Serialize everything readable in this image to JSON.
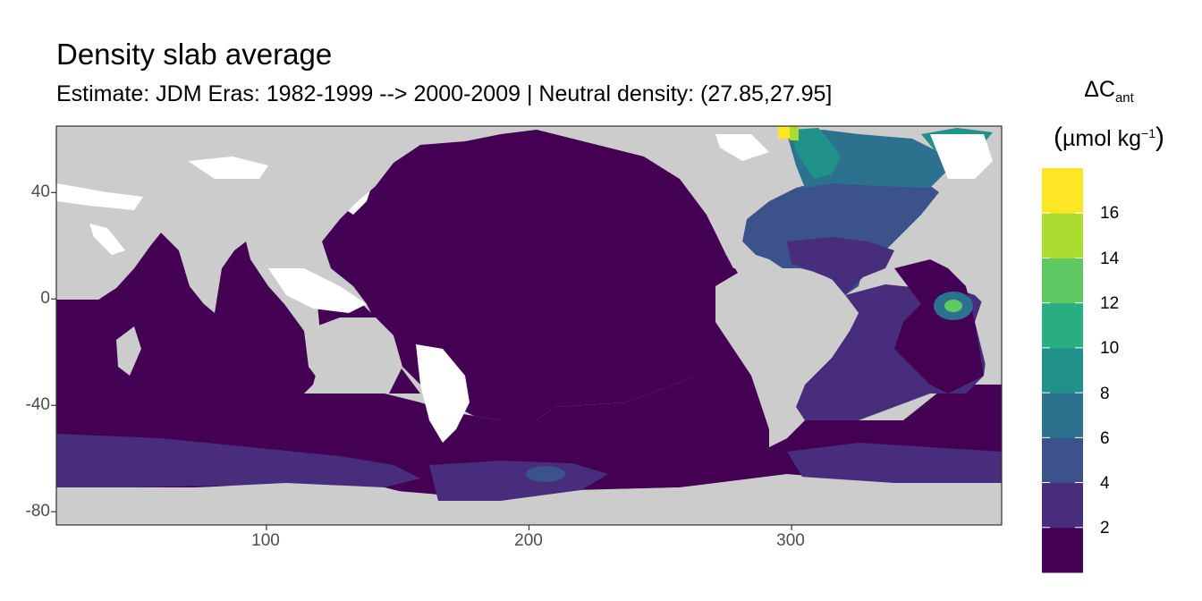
{
  "title": "Density slab average",
  "subtitle": "Estimate: JDM Eras: 1982-1999 --> 2000-2009 | Neutral density: (27.85,27.95]",
  "legend": {
    "title_main": "ΔC",
    "title_sub": "ant",
    "unit_open": "(",
    "unit_text": "µmol kg",
    "unit_sup": "−1",
    "unit_close": ")",
    "breaks": [
      0,
      2,
      4,
      6,
      8,
      10,
      12,
      14,
      16,
      18
    ],
    "labels": [
      "2",
      "4",
      "6",
      "8",
      "10",
      "12",
      "14",
      "16"
    ],
    "colors": [
      "#440154",
      "#472d7b",
      "#3b528b",
      "#2c728e",
      "#21918c",
      "#28ae80",
      "#5ec962",
      "#addc30",
      "#fde725"
    ]
  },
  "axes": {
    "x_ticks": [
      "100",
      "200",
      "300"
    ],
    "y_ticks": [
      "40",
      "0",
      "-40",
      "-80"
    ],
    "x_range": [
      20,
      380
    ],
    "y_range": [
      -85,
      65
    ],
    "land_color": "#cccccc",
    "ocean_default_color": "#440154",
    "nodata_color": "#ffffff"
  },
  "map_data": {
    "type": "raster",
    "variable": "dcant",
    "lon_tick_values": [
      100,
      200,
      300
    ],
    "lat_tick_values": [
      40,
      0,
      -40,
      -80
    ]
  }
}
